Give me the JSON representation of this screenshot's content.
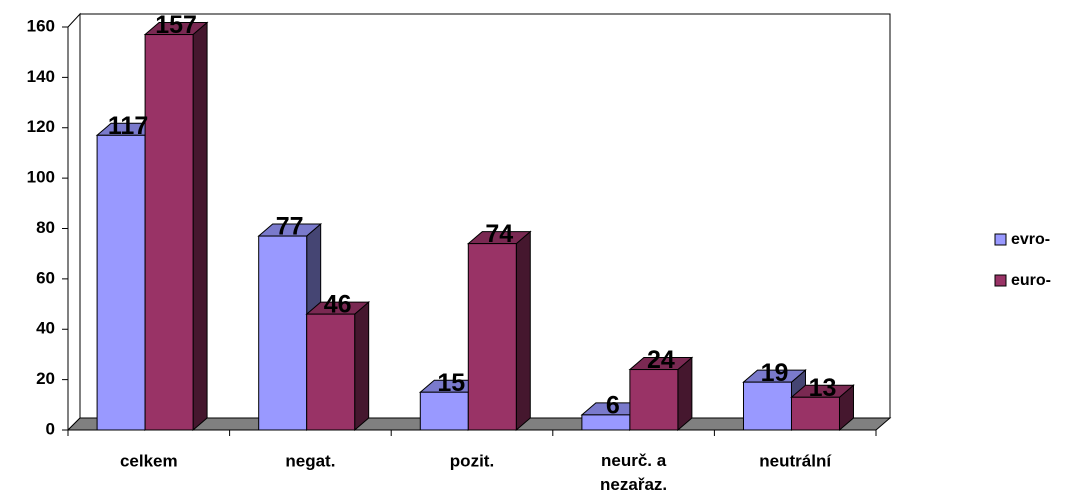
{
  "chart_data": {
    "type": "bar3d",
    "categories": [
      "celkem",
      "negat.",
      "pozit.",
      "neurč. a nezařaz.",
      "neutrální"
    ],
    "series": [
      {
        "name": "evro-",
        "color": "#9999ff",
        "values": [
          117,
          77,
          15,
          6,
          19
        ]
      },
      {
        "name": "euro-",
        "color": "#993366",
        "values": [
          157,
          46,
          74,
          24,
          13
        ]
      }
    ],
    "ylim": [
      0,
      160
    ],
    "yticks": [
      0,
      20,
      40,
      60,
      80,
      100,
      120,
      140,
      160
    ],
    "grid": false,
    "legend": "right"
  }
}
